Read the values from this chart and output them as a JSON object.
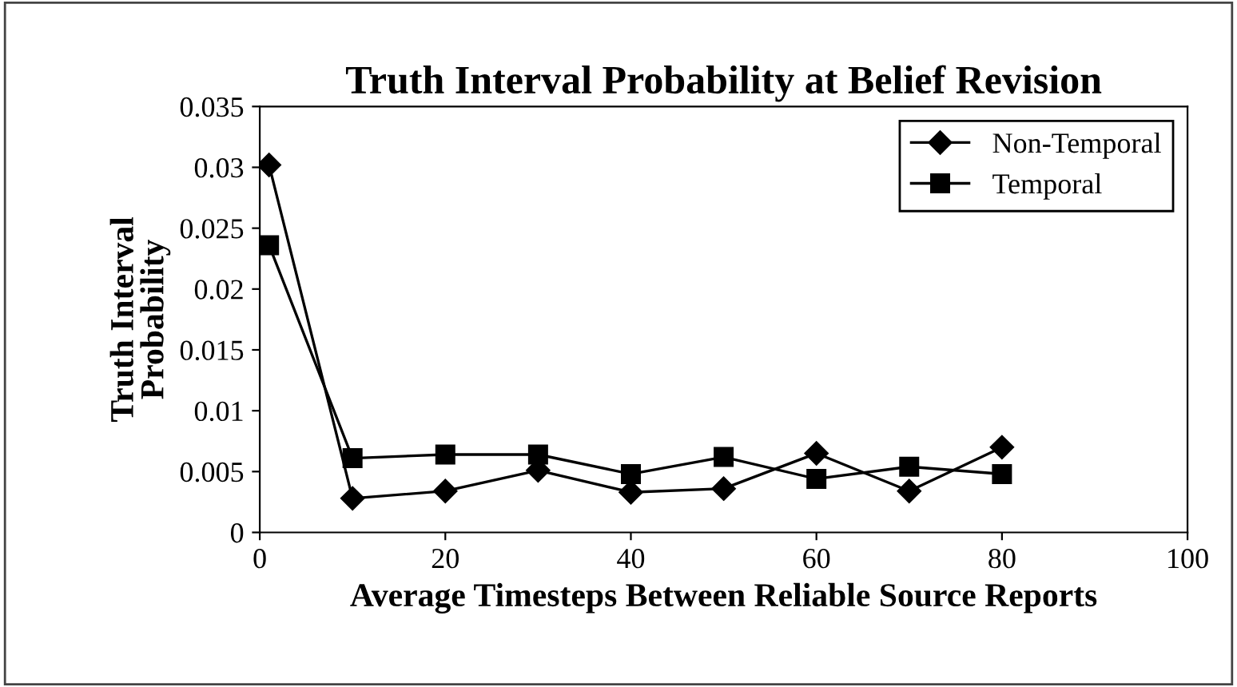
{
  "chart_data": {
    "type": "line",
    "title": "Truth Interval Probability at Belief Revision",
    "xlabel": "Average Timesteps Between Reliable Source Reports",
    "ylabel": "Truth Interval\nProbability",
    "x": [
      1,
      10,
      20,
      30,
      40,
      50,
      60,
      70,
      80
    ],
    "series": [
      {
        "name": "Non-Temporal",
        "color": "#000000",
        "marker": "diamond",
        "values": [
          0.0302,
          0.0028,
          0.0034,
          0.0051,
          0.0033,
          0.0036,
          0.0065,
          0.0034,
          0.007
        ]
      },
      {
        "name": "Temporal",
        "color": "#000000",
        "marker": "square",
        "values": [
          0.0236,
          0.0061,
          0.0064,
          0.0064,
          0.0048,
          0.0062,
          0.0044,
          0.0054,
          0.0048
        ]
      }
    ],
    "xlim": [
      0,
      100
    ],
    "xticks": [
      0,
      20,
      40,
      60,
      80,
      100
    ],
    "ylim": [
      0,
      0.035
    ],
    "yticks": [
      0,
      0.005,
      0.01,
      0.015,
      0.02,
      0.025,
      0.03,
      0.035
    ],
    "grid": false,
    "legend": "top right",
    "line_style": "solid"
  }
}
